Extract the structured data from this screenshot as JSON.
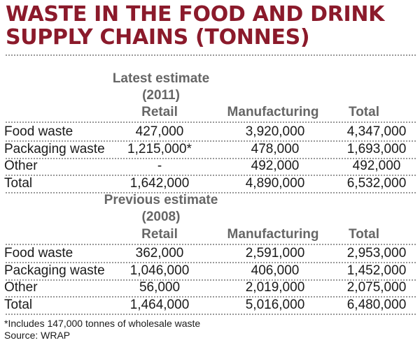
{
  "chart_data": {
    "type": "table",
    "title": "WASTE IN THE FOOD AND DRINK SUPPLY CHAINS (TONNES)",
    "columns": [
      "Retail",
      "Manufacturing",
      "Total"
    ],
    "sections": [
      {
        "heading_line1": "Latest estimate",
        "heading_line2": "(2011)",
        "rows": [
          {
            "label": "Food waste",
            "retail": "427,000",
            "manufacturing": "3,920,000",
            "total": "4,347,000"
          },
          {
            "label": "Packaging waste",
            "retail": "1,215,000*",
            "manufacturing": "478,000",
            "total": "1,693,000"
          },
          {
            "label": "Other",
            "retail": "-",
            "manufacturing": "492,000",
            "total": "492,000"
          },
          {
            "label": "Total",
            "retail": "1,642,000",
            "manufacturing": "4,890,000",
            "total": "6,532,000"
          }
        ]
      },
      {
        "heading_line1": "Previous estimate",
        "heading_line2": "(2008)",
        "rows": [
          {
            "label": "Food waste",
            "retail": "362,000",
            "manufacturing": "2,591,000",
            "total": "2,953,000"
          },
          {
            "label": "Packaging waste",
            "retail": "1,046,000",
            "manufacturing": "406,000",
            "total": "1,452,000"
          },
          {
            "label": "Other",
            "retail": "56,000",
            "manufacturing": "2,019,000",
            "total": "2,075,000"
          },
          {
            "label": "Total",
            "retail": "1,464,000",
            "manufacturing": "5,016,000",
            "total": "6,480,000"
          }
        ]
      }
    ],
    "footnote": "*Includes 147,000 tonnes of wholesale waste",
    "source": "Source: WRAP"
  },
  "colors": {
    "title": "#8b1a2b",
    "header": "#666666",
    "text": "#1a1a1a",
    "divider": "#999999"
  }
}
